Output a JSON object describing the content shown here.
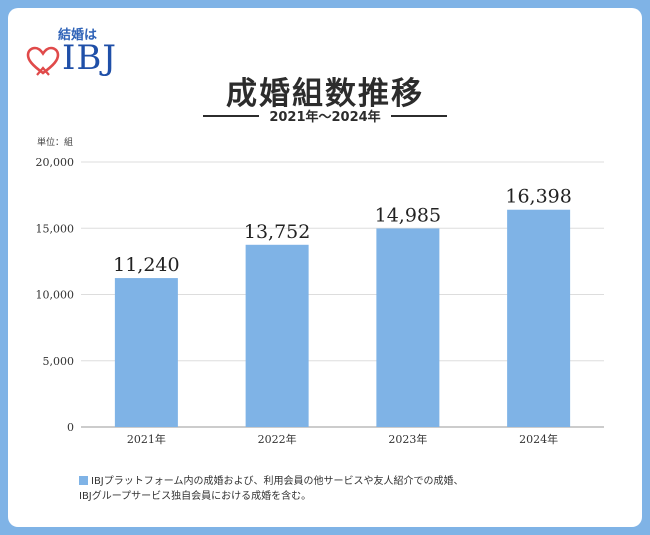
{
  "logo": {
    "sub": "結婚は",
    "text": "IBJ"
  },
  "title": "成婚組数推移",
  "subtitle": "2021年〜2024年",
  "unit_label": "単位：組",
  "colors": {
    "bar": "#7fb3e6",
    "frame": "#7fb3e6",
    "heart": "#e04a4a",
    "logo": "#1f4fa8"
  },
  "chart_data": {
    "type": "bar",
    "categories": [
      "2021年",
      "2022年",
      "2023年",
      "2024年"
    ],
    "values": [
      11240,
      13752,
      14985,
      16398
    ],
    "data_labels": [
      "11,240",
      "13,752",
      "14,985",
      "16,398"
    ],
    "ylim": [
      0,
      20000
    ],
    "yticks": [
      0,
      5000,
      10000,
      15000,
      20000
    ],
    "ytick_labels": [
      "0",
      "5,000",
      "10,000",
      "15,000",
      "20,000"
    ],
    "grid": true,
    "legend": "bottom-left"
  },
  "footnote": {
    "line1": "IBJプラットフォーム内の成婚および、利用会員の他サービスや友人紹介での成婚、",
    "line2": "IBJグループサービス独自会員における成婚を含む。"
  }
}
